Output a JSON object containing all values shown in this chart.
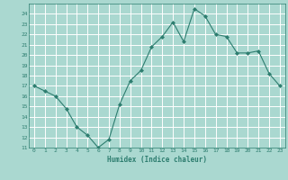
{
  "x": [
    0,
    1,
    2,
    3,
    4,
    5,
    6,
    7,
    8,
    9,
    10,
    11,
    12,
    13,
    14,
    15,
    16,
    17,
    18,
    19,
    20,
    21,
    22,
    23
  ],
  "y": [
    17,
    16.5,
    16,
    14.8,
    13,
    12.2,
    11,
    11.8,
    15.2,
    17.5,
    18.5,
    20.8,
    21.8,
    23.2,
    21.3,
    24.5,
    23.8,
    22,
    21.8,
    20.2,
    20.2,
    20.4,
    18.2,
    17
  ],
  "xlabel": "Humidex (Indice chaleur)",
  "ylim": [
    11,
    25
  ],
  "xlim": [
    -0.5,
    23.5
  ],
  "yticks": [
    11,
    12,
    13,
    14,
    15,
    16,
    17,
    18,
    19,
    20,
    21,
    22,
    23,
    24
  ],
  "xticks": [
    0,
    1,
    2,
    3,
    4,
    5,
    6,
    7,
    8,
    9,
    10,
    11,
    12,
    13,
    14,
    15,
    16,
    17,
    18,
    19,
    20,
    21,
    22,
    23
  ],
  "line_color": "#2d7d6f",
  "marker_color": "#2d7d6f",
  "bg_color": "#aad8d0",
  "grid_color": "#ffffff",
  "face_color": "#aad8d0"
}
